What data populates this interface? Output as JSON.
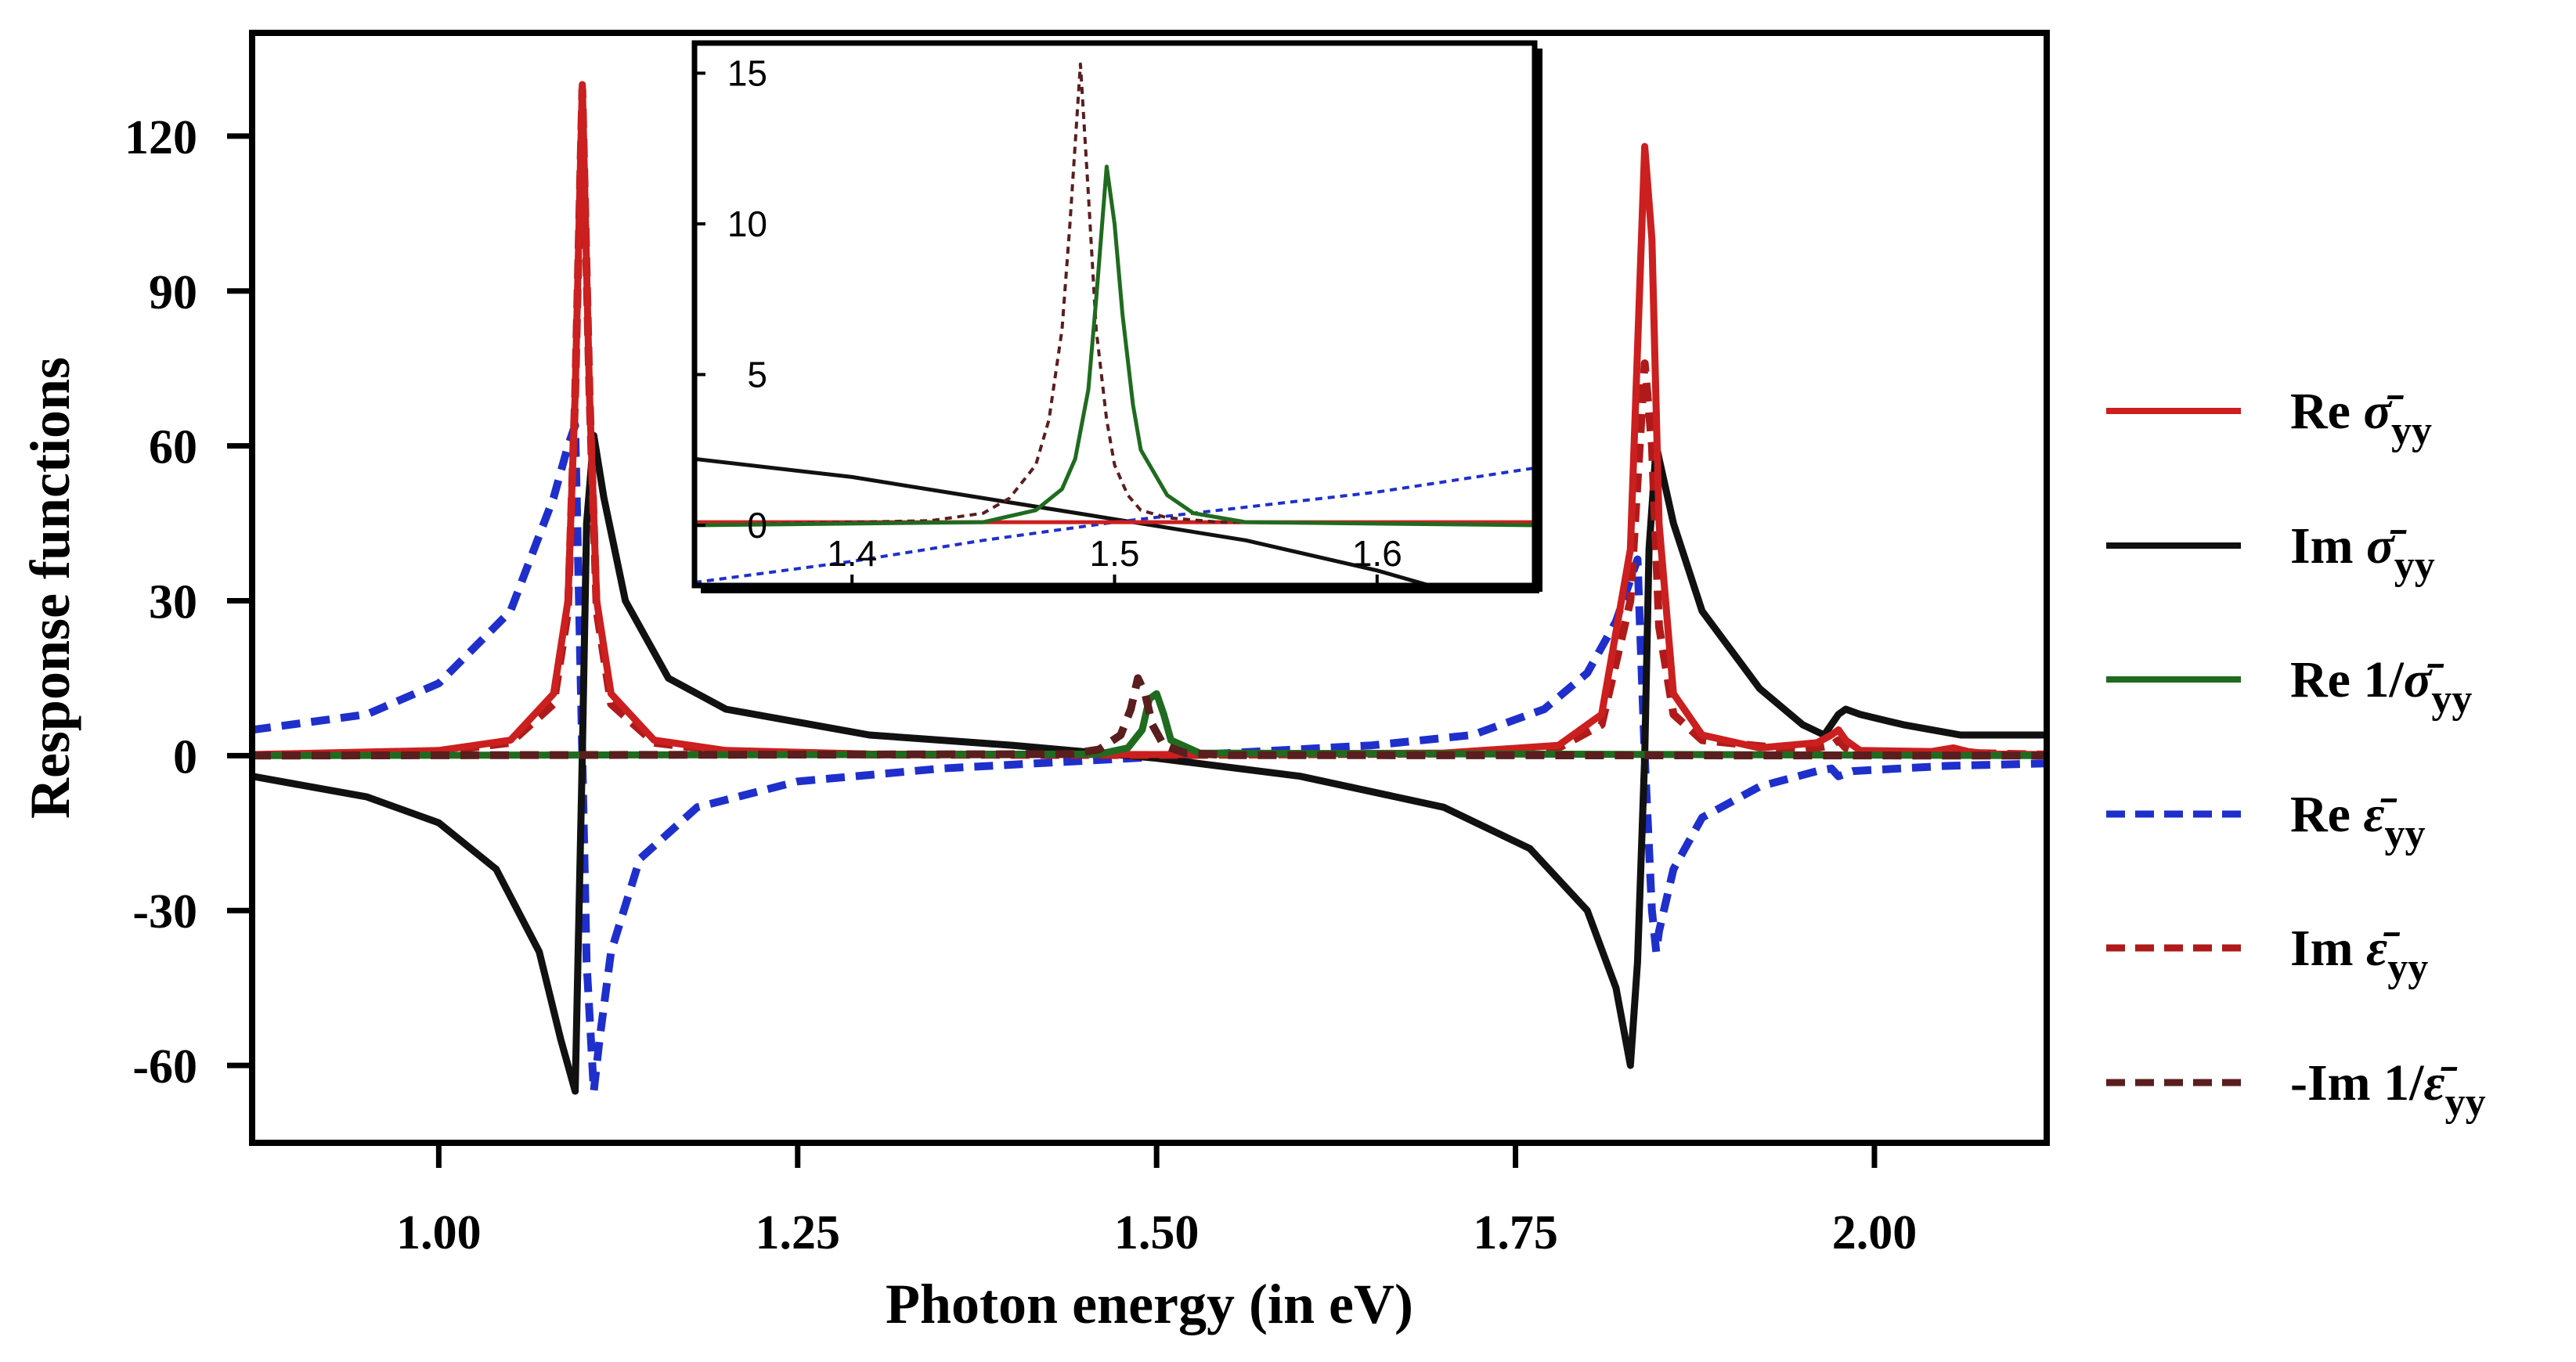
{
  "chart_data": [
    {
      "panel": "main",
      "type": "line",
      "xlabel": "Photon energy (in eV)",
      "ylabel": "Response functions",
      "xlim": [
        0.87,
        2.12
      ],
      "ylim": [
        -75,
        140
      ],
      "xticks": [
        1.0,
        1.25,
        1.5,
        1.75,
        2.0
      ],
      "xtick_labels": [
        "1.00",
        "1.25",
        "1.50",
        "1.75",
        "2.00"
      ],
      "yticks": [
        -60,
        -30,
        0,
        30,
        60,
        90,
        120
      ],
      "ytick_labels": [
        "-60",
        "-30",
        "0",
        "30",
        "60",
        "90",
        "120"
      ],
      "series": [
        {
          "name": "Re σ̄yy",
          "color": "#cc1f1f",
          "style": "solid",
          "x": [
            0.87,
            1.0,
            1.05,
            1.08,
            1.09,
            1.095,
            1.1,
            1.105,
            1.11,
            1.12,
            1.15,
            1.2,
            1.3,
            1.5,
            1.7,
            1.78,
            1.81,
            1.83,
            1.84,
            1.845,
            1.85,
            1.86,
            1.88,
            1.92,
            1.96,
            1.97,
            1.975,
            1.98,
            1.99,
            2.04,
            2.055,
            2.065,
            2.08,
            2.12
          ],
          "y": [
            0.2,
            1,
            3,
            12,
            30,
            70,
            130,
            70,
            30,
            12,
            3,
            1,
            0.3,
            0.2,
            0.5,
            2,
            8,
            40,
            118,
            100,
            45,
            12,
            4,
            1.5,
            2.5,
            4,
            5,
            3,
            1,
            0.8,
            1.5,
            0.8,
            0.3,
            0.2
          ]
        },
        {
          "name": "Im σ̄yy",
          "color": "#111111",
          "style": "solid",
          "x": [
            0.87,
            0.95,
            1.0,
            1.04,
            1.07,
            1.085,
            1.095,
            1.1,
            1.103,
            1.108,
            1.115,
            1.13,
            1.16,
            1.2,
            1.3,
            1.4,
            1.5,
            1.6,
            1.7,
            1.76,
            1.8,
            1.82,
            1.83,
            1.835,
            1.84,
            1.843,
            1.848,
            1.86,
            1.88,
            1.92,
            1.95,
            1.965,
            1.975,
            1.98,
            1.99,
            2.02,
            2.06,
            2.12
          ],
          "y": [
            -4,
            -8,
            -13,
            -22,
            -38,
            -55,
            -65,
            0,
            45,
            62,
            50,
            30,
            15,
            9,
            4,
            2,
            -0.5,
            -4,
            -10,
            -18,
            -30,
            -45,
            -60,
            -40,
            0,
            40,
            60,
            45,
            28,
            13,
            6,
            4,
            8,
            9,
            8,
            6,
            4,
            4
          ]
        },
        {
          "name": "Re 1/σ̄yy",
          "color": "#1f6b1f",
          "style": "solid",
          "x": [
            0.87,
            1.46,
            1.48,
            1.49,
            1.495,
            1.5,
            1.505,
            1.51,
            1.53,
            2.12
          ],
          "y": [
            0,
            0.3,
            1.5,
            5,
            11,
            12,
            8,
            3,
            0.5,
            0
          ]
        },
        {
          "name": "Re ε̄yy",
          "color": "#1f2fcc",
          "style": "dashed",
          "x": [
            0.87,
            0.95,
            1.0,
            1.05,
            1.08,
            1.09,
            1.095,
            1.1,
            1.103,
            1.108,
            1.112,
            1.12,
            1.14,
            1.18,
            1.25,
            1.35,
            1.45,
            1.55,
            1.65,
            1.72,
            1.77,
            1.8,
            1.82,
            1.835,
            1.84,
            1.845,
            1.848,
            1.85,
            1.86,
            1.88,
            1.92,
            1.96,
            1.97,
            1.975,
            1.985,
            2.05,
            2.12
          ],
          "y": [
            5,
            8,
            14,
            28,
            50,
            60,
            64,
            0,
            -40,
            -65,
            -55,
            -38,
            -20,
            -10,
            -5,
            -2.5,
            -1,
            0.5,
            2,
            4,
            9,
            16,
            26,
            38,
            0,
            -30,
            -38,
            -34,
            -22,
            -12,
            -6,
            -3,
            -2.5,
            -4,
            -3,
            -2,
            -1.5
          ]
        },
        {
          "name": "Im ε̄yy",
          "color": "#b01a1a",
          "style": "dashed",
          "x": [
            0.87,
            1.0,
            1.05,
            1.08,
            1.09,
            1.095,
            1.1,
            1.105,
            1.11,
            1.12,
            1.15,
            1.2,
            1.3,
            1.5,
            1.7,
            1.78,
            1.81,
            1.83,
            1.84,
            1.845,
            1.85,
            1.86,
            1.88,
            1.95,
            1.97,
            1.975,
            1.98,
            1.99,
            2.05,
            2.06,
            2.07,
            2.12
          ],
          "y": [
            0.1,
            0.8,
            2.5,
            10,
            28,
            70,
            129,
            70,
            28,
            10,
            2.5,
            0.8,
            0.2,
            0.1,
            0.4,
            1.5,
            6,
            30,
            76,
            60,
            25,
            8,
            3,
            1,
            2,
            3,
            1.5,
            0.5,
            0.5,
            1,
            0.5,
            0.2
          ]
        },
        {
          "name": "-Im 1/ε̄yy",
          "color": "#5a1e1e",
          "style": "dashed",
          "x": [
            0.87,
            1.44,
            1.46,
            1.475,
            1.482,
            1.487,
            1.492,
            1.497,
            1.505,
            1.52,
            1.55,
            2.12
          ],
          "y": [
            0,
            0.3,
            1.2,
            4,
            9,
            15,
            12,
            6,
            2,
            0.5,
            0.1,
            0
          ]
        }
      ]
    },
    {
      "panel": "inset",
      "type": "line",
      "xlim": [
        1.34,
        1.66
      ],
      "ylim": [
        -2,
        16
      ],
      "xticks": [
        1.4,
        1.5,
        1.6
      ],
      "xtick_labels": [
        "1.4",
        "1.5",
        "1.6"
      ],
      "yticks": [
        0,
        5,
        10,
        15
      ],
      "ytick_labels": [
        "0",
        "5",
        "10",
        "15"
      ],
      "series": [
        {
          "name": "Im σ̄yy",
          "color": "#111111",
          "style": "solid",
          "x": [
            1.34,
            1.4,
            1.45,
            1.5,
            1.55,
            1.6,
            1.62
          ],
          "y": [
            2.2,
            1.6,
            0.9,
            0.2,
            -0.5,
            -1.5,
            -2
          ]
        },
        {
          "name": "Re ε̄yy",
          "color": "#1f2fcc",
          "style": "dashed",
          "x": [
            1.34,
            1.4,
            1.45,
            1.5,
            1.55,
            1.6,
            1.66
          ],
          "y": [
            -1.9,
            -1.2,
            -0.5,
            0.1,
            0.6,
            1.1,
            1.9
          ]
        },
        {
          "name": "Re σ̄yy",
          "color": "#cc1f1f",
          "style": "solid",
          "x": [
            1.34,
            1.66
          ],
          "y": [
            0.1,
            0.1
          ]
        },
        {
          "name": "-Im 1/ε̄yy",
          "color": "#5a1e1e",
          "style": "dashed",
          "x": [
            1.34,
            1.43,
            1.45,
            1.46,
            1.47,
            1.475,
            1.48,
            1.483,
            1.487,
            1.49,
            1.493,
            1.497,
            1.5,
            1.505,
            1.51,
            1.52,
            1.54,
            1.66
          ],
          "y": [
            0,
            0.15,
            0.4,
            0.9,
            2,
            3.5,
            6.5,
            10,
            15.3,
            11,
            6.5,
            3.5,
            2,
            1,
            0.5,
            0.25,
            0.1,
            0
          ]
        },
        {
          "name": "Re 1/σ̄yy",
          "color": "#1f6b1f",
          "style": "solid",
          "x": [
            1.34,
            1.45,
            1.47,
            1.48,
            1.485,
            1.49,
            1.493,
            1.497,
            1.5,
            1.503,
            1.507,
            1.51,
            1.52,
            1.53,
            1.55,
            1.66
          ],
          "y": [
            0,
            0.1,
            0.5,
            1.2,
            2.2,
            4.5,
            7.5,
            11.9,
            10,
            7,
            4,
            2.5,
            1,
            0.4,
            0.1,
            0
          ]
        }
      ]
    }
  ],
  "legend": [
    {
      "prefix": "Re ",
      "symbol": "σ̄",
      "sub": "yy",
      "color": "#cc1f1f",
      "style": "solid"
    },
    {
      "prefix": "Im ",
      "symbol": "σ̄",
      "sub": "yy",
      "color": "#111111",
      "style": "solid"
    },
    {
      "prefix": "Re 1/",
      "symbol": "σ̄",
      "sub": "yy",
      "color": "#1f6b1f",
      "style": "solid"
    },
    {
      "prefix": "Re ",
      "symbol": "ε̄",
      "sub": "yy",
      "color": "#1f2fcc",
      "style": "dashed"
    },
    {
      "prefix": "Im ",
      "symbol": "ε̄",
      "sub": "yy",
      "color": "#b01a1a",
      "style": "dashed"
    },
    {
      "prefix": "-Im 1/",
      "symbol": "ε̄",
      "sub": "yy",
      "color": "#5a1e1e",
      "style": "dashed"
    }
  ]
}
